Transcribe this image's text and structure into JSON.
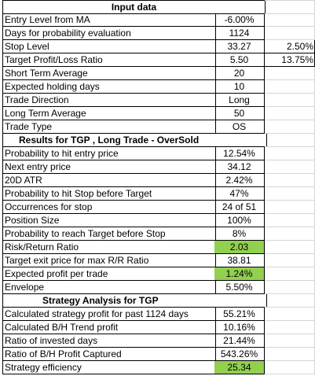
{
  "sections": {
    "input_title": "Input data",
    "results_title": "Results for TGP , Long Trade - OverSold",
    "strategy_title": "Strategy Analysis for TGP"
  },
  "input_rows": [
    {
      "label": "Entry Level from MA",
      "value": "-6.00%",
      "extra": ""
    },
    {
      "label": "Days for probability evaluation",
      "value": "1124",
      "extra": ""
    },
    {
      "label": "Stop Level",
      "value": "33.27",
      "extra": "2.50%"
    },
    {
      "label": "Target Profit/Loss Ratio",
      "value": "5.50",
      "extra": "13.75%"
    },
    {
      "label": "Short Term Average",
      "value": "20",
      "extra": ""
    },
    {
      "label": "Expected holding days",
      "value": "10",
      "extra": ""
    },
    {
      "label": "Trade Direction",
      "value": "Long",
      "extra": ""
    },
    {
      "label": "Long Term Average",
      "value": "50",
      "extra": ""
    },
    {
      "label": "Trade Type",
      "value": "OS",
      "extra": ""
    }
  ],
  "result_rows": [
    {
      "label": "Probability to hit entry price",
      "value": "12.54%",
      "highlight": false
    },
    {
      "label": "Next entry price",
      "value": "34.12",
      "highlight": false
    },
    {
      "label": "20D ATR",
      "value": "2.42%",
      "highlight": false
    },
    {
      "label": "Probability to hit Stop before Target",
      "value": "47%",
      "highlight": false
    },
    {
      "label": "Occurrences for stop",
      "value": "24 of 51",
      "highlight": false
    },
    {
      "label": "Position Size",
      "value": "100%",
      "highlight": false
    },
    {
      "label": "Probability to reach Target before Stop",
      "value": "8%",
      "highlight": false
    },
    {
      "label": "Risk/Return Ratio",
      "value": "2.03",
      "highlight": true
    },
    {
      "label": "Target exit price for max R/R Ratio",
      "value": "38.81",
      "highlight": false
    },
    {
      "label": "Expected profit per trade",
      "value": "1.24%",
      "highlight": true
    },
    {
      "label": "Envelope",
      "value": "5.50%",
      "highlight": false
    }
  ],
  "strategy_rows": [
    {
      "label": "Calculated strategy profit for past 1124 days",
      "value": "55.21%",
      "highlight": false
    },
    {
      "label": "Calculated B/H Trend profit",
      "value": "10.16%",
      "highlight": false
    },
    {
      "label": "Ratio of invested days",
      "value": "21.44%",
      "highlight": false
    },
    {
      "label": "Ratio of B/H Profit Captured",
      "value": "543.26%",
      "highlight": false
    },
    {
      "label": "Strategy efficiency",
      "value": "25.34",
      "highlight": true
    }
  ],
  "colors": {
    "highlight": "#92d050",
    "grid": "#000000",
    "empty_grid": "#d6d6d6"
  }
}
